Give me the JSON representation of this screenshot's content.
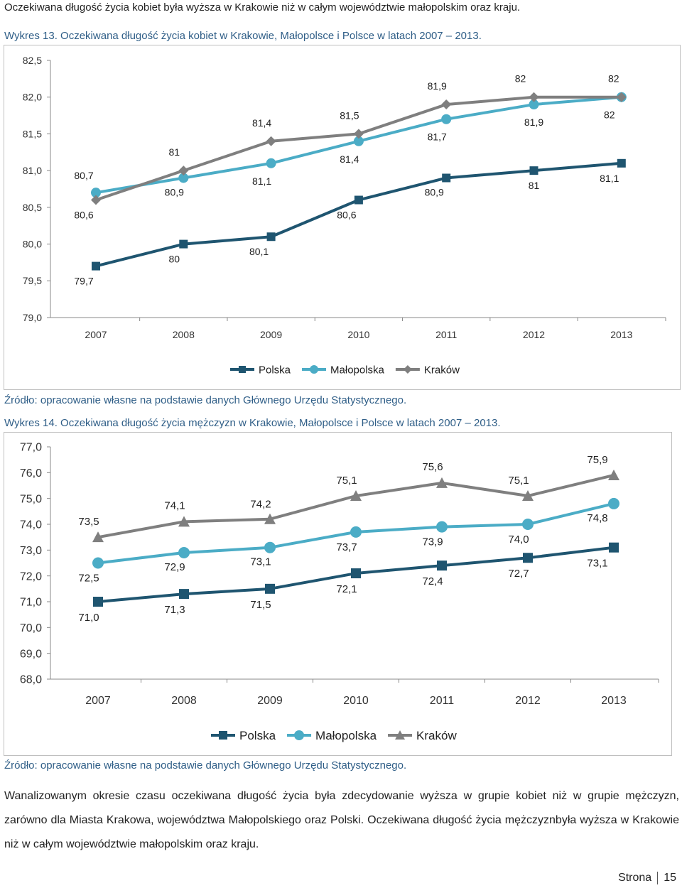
{
  "intro_text": "Oczekiwana długość życia kobiet była wyższa w Krakowie niż w całym województwie małopolskim oraz kraju.",
  "colors": {
    "polska": "#1f5570",
    "malopolska": "#4bacc6",
    "krakow": "#7f7f7f",
    "caption": "#2f5e87"
  },
  "chart_data": [
    {
      "type": "line",
      "caption": "Wykres 13. Oczekiwana długość życia kobiet w Krakowie, Małopolsce i Polsce w latach 2007 – 2013.",
      "categories": [
        "2007",
        "2008",
        "2009",
        "2010",
        "2011",
        "2012",
        "2013"
      ],
      "y_ticks": [
        "82,5",
        "82,0",
        "81,5",
        "81,0",
        "80,5",
        "80,0",
        "79,5",
        "79,0"
      ],
      "ylim": [
        79.0,
        82.5
      ],
      "grid": false,
      "legend": "bottom",
      "series": [
        {
          "name": "Polska",
          "marker": "square",
          "values": [
            79.7,
            80.0,
            80.1,
            80.6,
            80.9,
            81.0,
            81.1
          ],
          "labels": [
            "79,7",
            "80",
            "80,1",
            "80,6",
            "80,9",
            "81",
            "81,1"
          ]
        },
        {
          "name": "Małopolska",
          "marker": "circle",
          "values": [
            80.7,
            80.9,
            81.1,
            81.4,
            81.7,
            81.9,
            82.0
          ],
          "labels": [
            "80,7",
            "80,9",
            "81,1",
            "81,4",
            "81,7",
            "81,9",
            "82"
          ]
        },
        {
          "name": "Kraków",
          "marker": "diamond",
          "values": [
            80.6,
            81.0,
            81.4,
            81.5,
            81.9,
            82.0,
            82.0
          ],
          "labels": [
            "80,6",
            "81",
            "81,4",
            "81,5",
            "81,9",
            "82",
            "82"
          ]
        }
      ],
      "source": "Źródło: opracowanie własne na podstawie danych Głównego Urzędu Statystycznego."
    },
    {
      "type": "line",
      "caption": "Wykres 14. Oczekiwana długość życia mężczyzn w Krakowie, Małopolsce i Polsce w latach 2007 – 2013.",
      "categories": [
        "2007",
        "2008",
        "2009",
        "2010",
        "2011",
        "2012",
        "2013"
      ],
      "y_ticks": [
        "77,0",
        "76,0",
        "75,0",
        "74,0",
        "73,0",
        "72,0",
        "71,0",
        "70,0",
        "69,0",
        "68,0"
      ],
      "ylim": [
        68.0,
        77.0
      ],
      "grid": false,
      "legend": "bottom",
      "series": [
        {
          "name": "Polska",
          "marker": "square",
          "values": [
            71.0,
            71.3,
            71.5,
            72.1,
            72.4,
            72.7,
            73.1
          ],
          "labels": [
            "71,0",
            "71,3",
            "71,5",
            "72,1",
            "72,4",
            "72,7",
            "73,1"
          ]
        },
        {
          "name": "Małopolska",
          "marker": "circle",
          "values": [
            72.5,
            72.9,
            73.1,
            73.7,
            73.9,
            74.0,
            74.8
          ],
          "labels": [
            "72,5",
            "72,9",
            "73,1",
            "73,7",
            "73,9",
            "74,0",
            "74,8"
          ]
        },
        {
          "name": "Kraków",
          "marker": "triangle",
          "values": [
            73.5,
            74.1,
            74.2,
            75.1,
            75.6,
            75.1,
            75.9
          ],
          "labels": [
            "73,5",
            "74,1",
            "74,2",
            "75,1",
            "75,6",
            "75,1",
            "75,9"
          ]
        }
      ],
      "source": "Źródło: opracowanie własne na podstawie danych Głównego Urzędu Statystycznego."
    }
  ],
  "paragraph": "Wanalizowanym okresie czasu oczekiwana długość życia była zdecydowanie wyższa w grupie kobiet niż w grupie mężczyzn, zarówno dla Miasta Krakowa, województwa Małopolskiego oraz Polski. Oczekiwana długość życia mężczyznbyła wyższa w Krakowie niż w całym województwie małopolskim oraz kraju.",
  "footer": {
    "label": "Strona",
    "page": "15"
  }
}
